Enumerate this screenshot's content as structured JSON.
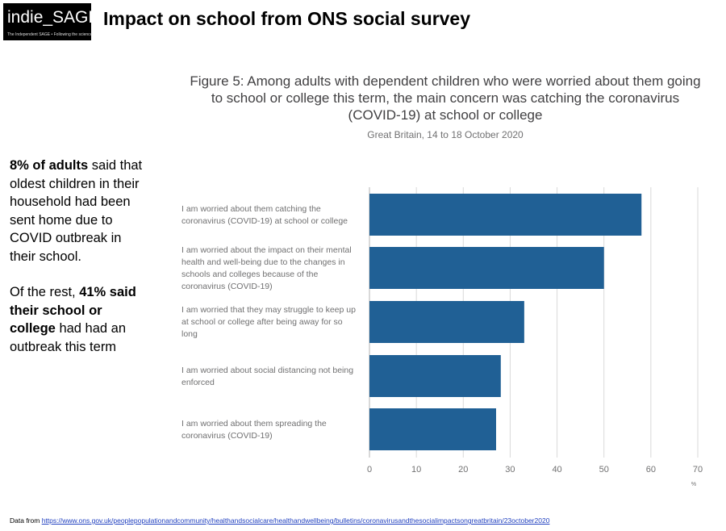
{
  "header": {
    "logo_text": "indie_SAGE",
    "logo_tagline": "The Independent SAGE • Following the science",
    "title": "Impact on school from ONS social survey"
  },
  "side_text": {
    "p1_bold": "8% of adults",
    "p1_rest": " said that oldest children in their household had been sent home due to COVID outbreak in their school.",
    "p2_start": "Of the rest, ",
    "p2_bold": "41% said their school or college",
    "p2_rest": " had had an outbreak this term"
  },
  "footer": {
    "source_label": "Data from",
    "source_url": "https://www.ons.gov.uk/peoplepopulationandcommunity/healthandsocialcare/healthandwellbeing/bulletins/coronavirusandthesocialimpactsongreatbritain/23october2020"
  },
  "chart_data": {
    "type": "bar",
    "orientation": "horizontal",
    "title": "Figure 5: Among adults with dependent children who were worried about them going to school or college this term, the main concern was catching the coronavirus (COVID-19) at school or college",
    "subtitle": "Great Britain, 14 to 18 October 2020",
    "categories": [
      "I am worried about them catching the coronavirus (COVID-19) at school or college",
      "I am worried about the impact on their mental health and well-being due to the changes in schools and colleges because of the coronavirus (COVID-19)",
      "I am worried that they may struggle to keep up at school or college after being away for so long",
      "I am worried about social distancing not being enforced",
      "I am worried about them spreading the coronavirus (COVID-19)"
    ],
    "values": [
      58,
      50,
      33,
      28,
      27
    ],
    "x_unit": "%",
    "xlim": [
      0,
      70
    ],
    "xticks": [
      0,
      10,
      20,
      30,
      40,
      50,
      60,
      70
    ],
    "grid": true,
    "bar_color": "#206095"
  }
}
